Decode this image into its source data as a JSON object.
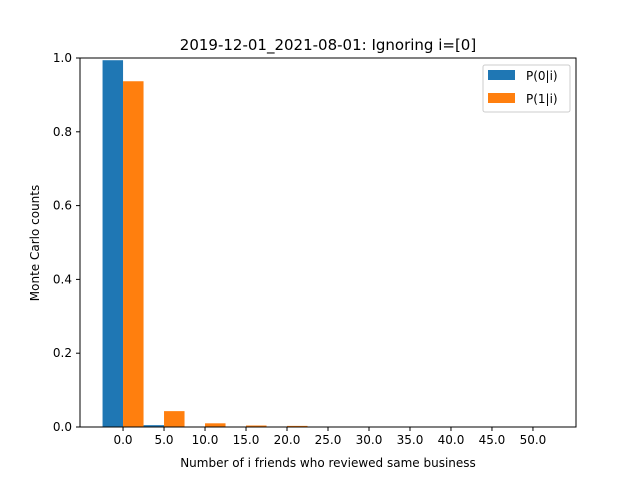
{
  "chart_data": {
    "type": "bar",
    "title": "2019-12-01_2021-08-01: Ignoring i=[0]",
    "xlabel": "Number of i friends who reviewed same business",
    "ylabel": "Monte Carlo counts",
    "x_tick_labels": [
      "0.0",
      "5.0",
      "10.0",
      "15.0",
      "20.0",
      "25.0",
      "30.0",
      "35.0",
      "40.0",
      "45.0",
      "50.0"
    ],
    "y_tick_labels": [
      "0.0",
      "0.2",
      "0.4",
      "0.6",
      "0.8",
      "1.0"
    ],
    "ylim": [
      0,
      1.0
    ],
    "legend_position": "top-right",
    "categories": [
      0,
      5,
      10,
      15,
      20,
      25,
      30,
      35,
      40,
      45,
      50
    ],
    "series": [
      {
        "name": "P(0|i)",
        "color": "#1f77b4",
        "values": [
          0.994,
          0.005,
          0.001,
          0.0,
          0.0,
          0.0,
          0.0,
          0.0,
          0.0,
          0.0,
          0.0
        ]
      },
      {
        "name": "P(1|i)",
        "color": "#ff7f0e",
        "values": [
          0.937,
          0.043,
          0.01,
          0.004,
          0.003,
          0.001,
          0.0,
          0.0,
          0.0,
          0.0,
          0.0
        ]
      }
    ]
  }
}
